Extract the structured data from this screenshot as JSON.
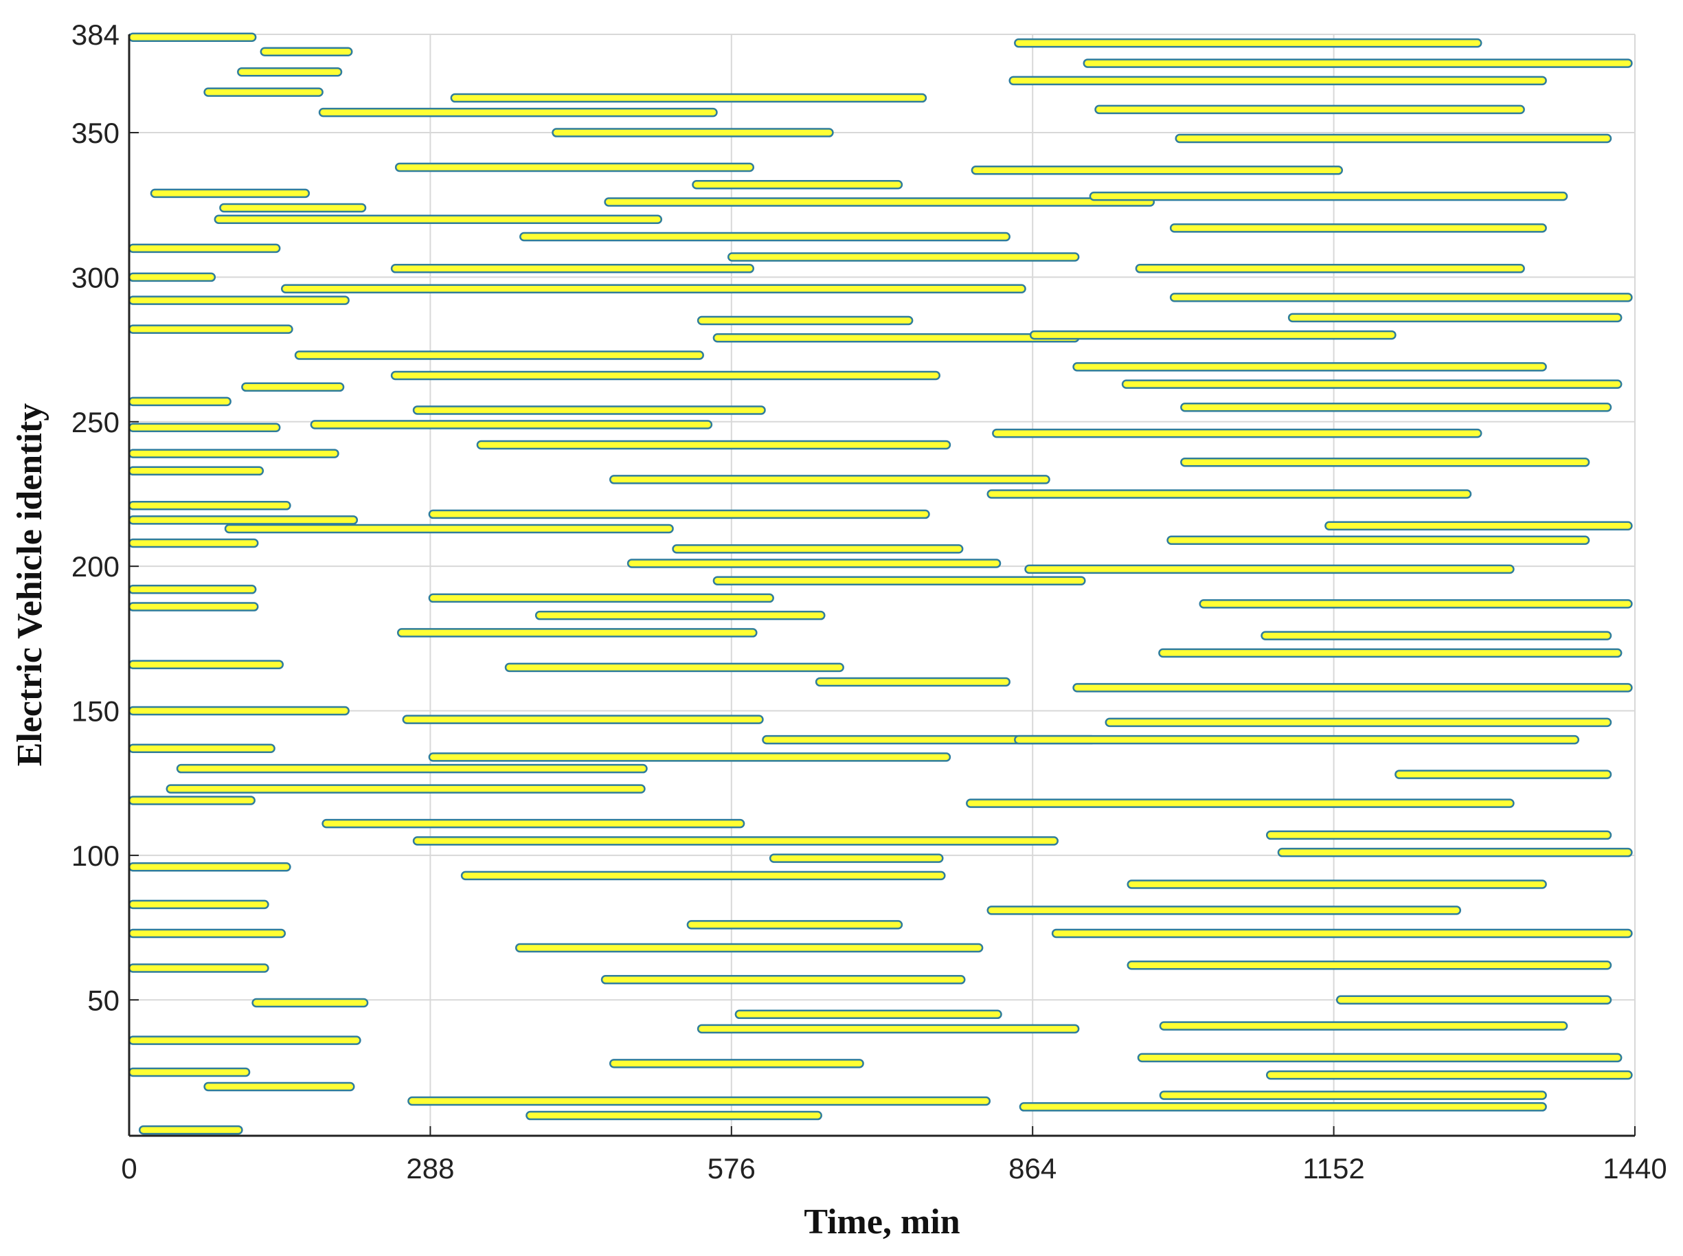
{
  "chart_data": {
    "type": "range_bar",
    "xlabel": "Time, min",
    "ylabel": "Electric Vehicle identity",
    "xlim": [
      0,
      1440
    ],
    "ylim": [
      3,
      384
    ],
    "xticks": [
      0,
      288,
      576,
      864,
      1152,
      1440
    ],
    "yticks": [
      50,
      100,
      150,
      200,
      250,
      300,
      350,
      384
    ],
    "grid": true,
    "color": "#ffff33",
    "edge_color": "#2f7d9c",
    "y": [
      383,
      378,
      362,
      357,
      350,
      338,
      332,
      326,
      320,
      314,
      307,
      303,
      296,
      285,
      279,
      273,
      266,
      254,
      249,
      242,
      230,
      218,
      213,
      206,
      201,
      195,
      189,
      183,
      177,
      165,
      160,
      147,
      140,
      134,
      130,
      123,
      111,
      105,
      99,
      93,
      76,
      68,
      57,
      45,
      40,
      28,
      15,
      10,
      5,
      381,
      374,
      368,
      358,
      348,
      337,
      328,
      317,
      303,
      293,
      286,
      280,
      269,
      263,
      255,
      246,
      236,
      225,
      214,
      209,
      199,
      187,
      176,
      170,
      158,
      146,
      140,
      128,
      118,
      107,
      101,
      90,
      81,
      73,
      62,
      50,
      41,
      30,
      24,
      17,
      13,
      371,
      364,
      329,
      324,
      310,
      300,
      292,
      282,
      262,
      257,
      248,
      239,
      233,
      221,
      216,
      208,
      192,
      186,
      166,
      150,
      137,
      119,
      96,
      83,
      73,
      61,
      49,
      36,
      25,
      20
    ],
    "start": [
      0,
      126,
      308,
      182,
      405,
      255,
      539,
      455,
      82,
      374,
      573,
      251,
      146,
      544,
      559,
      159,
      251,
      272,
      174,
      333,
      460,
      287,
      92,
      520,
      477,
      559,
      287,
      389,
      257,
      360,
      657,
      262,
      606,
      287,
      46,
      36,
      185,
      272,
      613,
      318,
      534,
      370,
      452,
      580,
      544,
      460,
      267,
      380,
      10,
      847,
      913,
      842,
      924,
      1001,
      806,
      919,
      996,
      963,
      996,
      1109,
      862,
      903,
      950,
      1006,
      826,
      1006,
      821,
      1144,
      993,
      857,
      1024,
      1083,
      985,
      903,
      934,
      847,
      1211,
      801,
      1088,
      1099,
      955,
      821,
      883,
      955,
      1155,
      986,
      965,
      1088,
      986,
      852,
      104,
      72,
      21,
      87,
      0,
      0,
      0,
      0,
      108,
      0,
      0,
      0,
      0,
      0,
      0,
      0,
      0,
      0,
      0,
      0,
      0,
      0,
      0,
      0,
      0,
      0,
      118,
      0,
      0,
      72
    ],
    "end": [
      121,
      213,
      762,
      562,
      673,
      597,
      739,
      980,
      509,
      842,
      908,
      597,
      857,
      749,
      908,
      549,
      775,
      608,
      557,
      785,
      880,
      765,
      520,
      797,
      833,
      914,
      616,
      665,
      600,
      683,
      842,
      606,
      924,
      785,
      495,
      493,
      588,
      888,
      778,
      780,
      739,
      816,
      799,
      834,
      908,
      702,
      823,
      662,
      108,
      1293,
      1437,
      1355,
      1334,
      1417,
      1160,
      1375,
      1355,
      1334,
      1437,
      1427,
      1211,
      1355,
      1427,
      1417,
      1293,
      1396,
      1283,
      1437,
      1396,
      1324,
      1437,
      1417,
      1427,
      1437,
      1417,
      1386,
      1417,
      1324,
      1417,
      1437,
      1355,
      1273,
      1437,
      1417,
      1417,
      1375,
      1427,
      1437,
      1355,
      1355,
      203,
      185,
      172,
      226,
      144,
      82,
      210,
      156,
      205,
      97,
      144,
      200,
      128,
      154,
      218,
      123,
      121,
      123,
      147,
      210,
      139,
      120,
      154,
      133,
      149,
      133,
      228,
      221,
      115,
      215
    ]
  }
}
